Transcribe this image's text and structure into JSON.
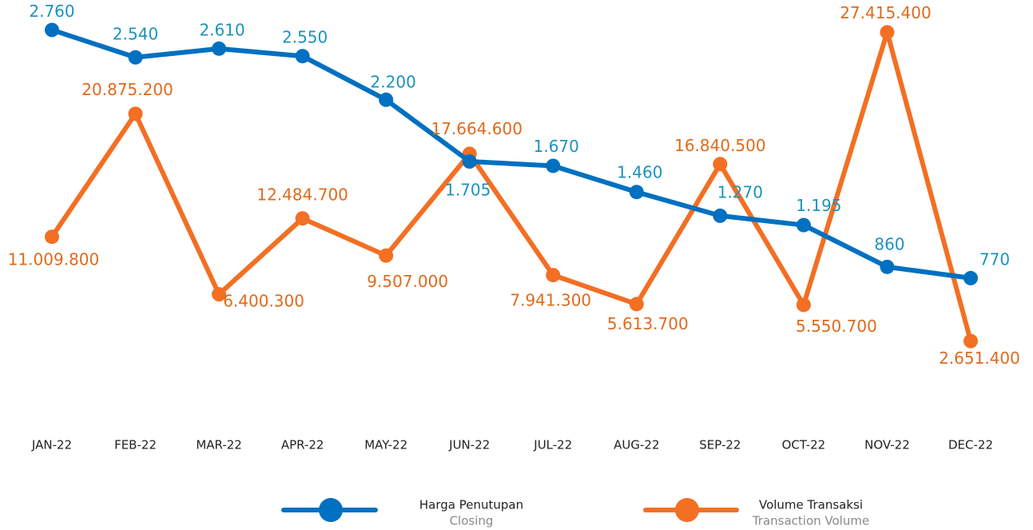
{
  "chart_data": {
    "type": "line",
    "categories": [
      "JAN-22",
      "FEB-22",
      "MAR-22",
      "APR-22",
      "MAY-22",
      "JUN-22",
      "JUL-22",
      "AUG-22",
      "SEP-22",
      "OCT-22",
      "NOV-22",
      "DEC-22"
    ],
    "series": [
      {
        "name": "Harga Penutupan",
        "subtitle": "Closing",
        "color": "#0070c0",
        "label_color": "#1b93bd",
        "values": [
          2760,
          2540,
          2610,
          2550,
          2200,
          1705,
          1670,
          1460,
          1270,
          1195,
          860,
          770
        ],
        "value_labels": [
          "2.760",
          "2.540",
          "2.610",
          "2.550",
          "2.200",
          "1.705",
          "1.670",
          "1.460",
          "1.270",
          "1.195",
          "860",
          "770"
        ]
      },
      {
        "name": "Volume Transaksi",
        "subtitle": "Transaction Volume",
        "color": "#f36f23",
        "label_color": "#e06a1c",
        "axis": "y2",
        "values": [
          11009800,
          20875200,
          6400300,
          12484700,
          9507000,
          17664600,
          7941300,
          5613700,
          16840500,
          5550700,
          27415400,
          2651400
        ],
        "value_labels": [
          "11.009.800",
          "20.875.200",
          "6.400.300",
          "12.484.700",
          "9.507.000",
          "17.664.600",
          "7.941.300",
          "5.613.700",
          "16.840.500",
          "5.550.700",
          "27.415.400",
          "2.651.400"
        ]
      }
    ],
    "ylim": [
      0,
      3000
    ],
    "y2lim": [
      0,
      30000000
    ],
    "grid": false
  }
}
